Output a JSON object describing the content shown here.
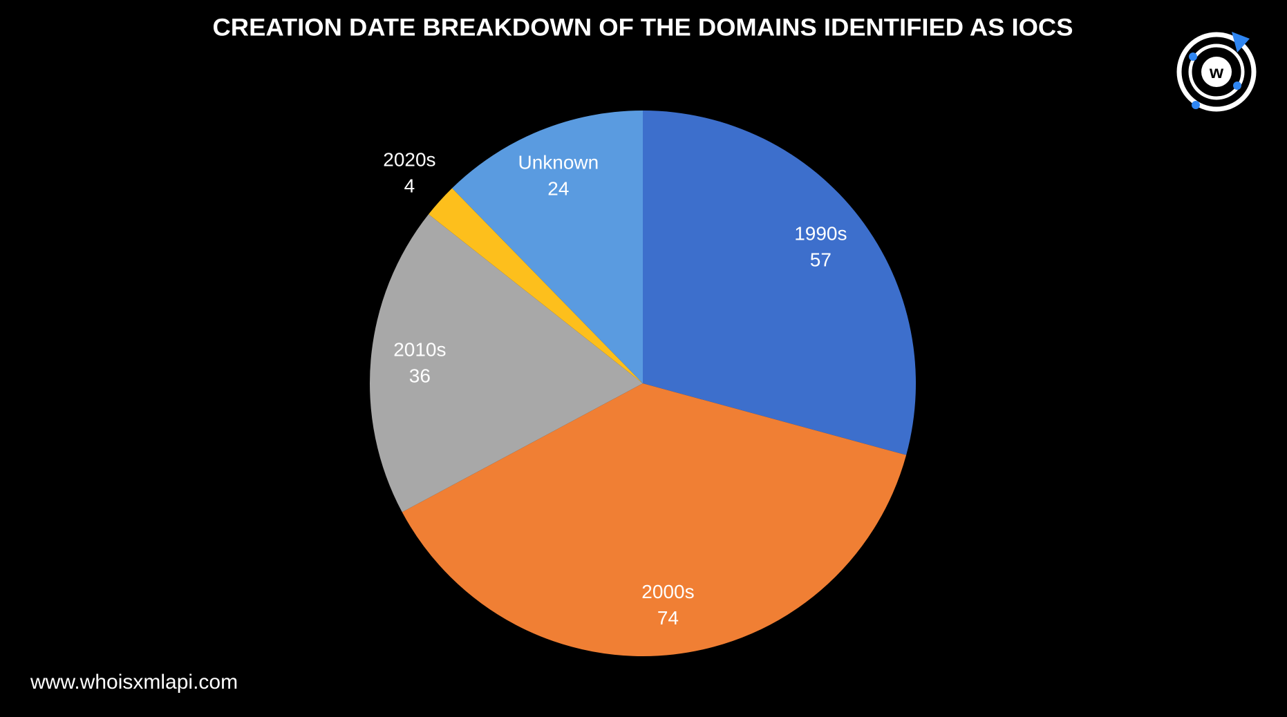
{
  "chart_data": {
    "type": "pie",
    "title": "CREATION DATE BREAKDOWN OF THE DOMAINS IDENTIFIED AS IOCS",
    "categories": [
      "1990s",
      "2000s",
      "2010s",
      "2020s",
      "Unknown"
    ],
    "values": [
      57,
      74,
      36,
      4,
      24
    ],
    "colors": [
      "#3d6fcc",
      "#f07f34",
      "#a8a8a8",
      "#fdbf1c",
      "#5a9be0"
    ],
    "footer": "www.whoisxmlapi.com"
  }
}
